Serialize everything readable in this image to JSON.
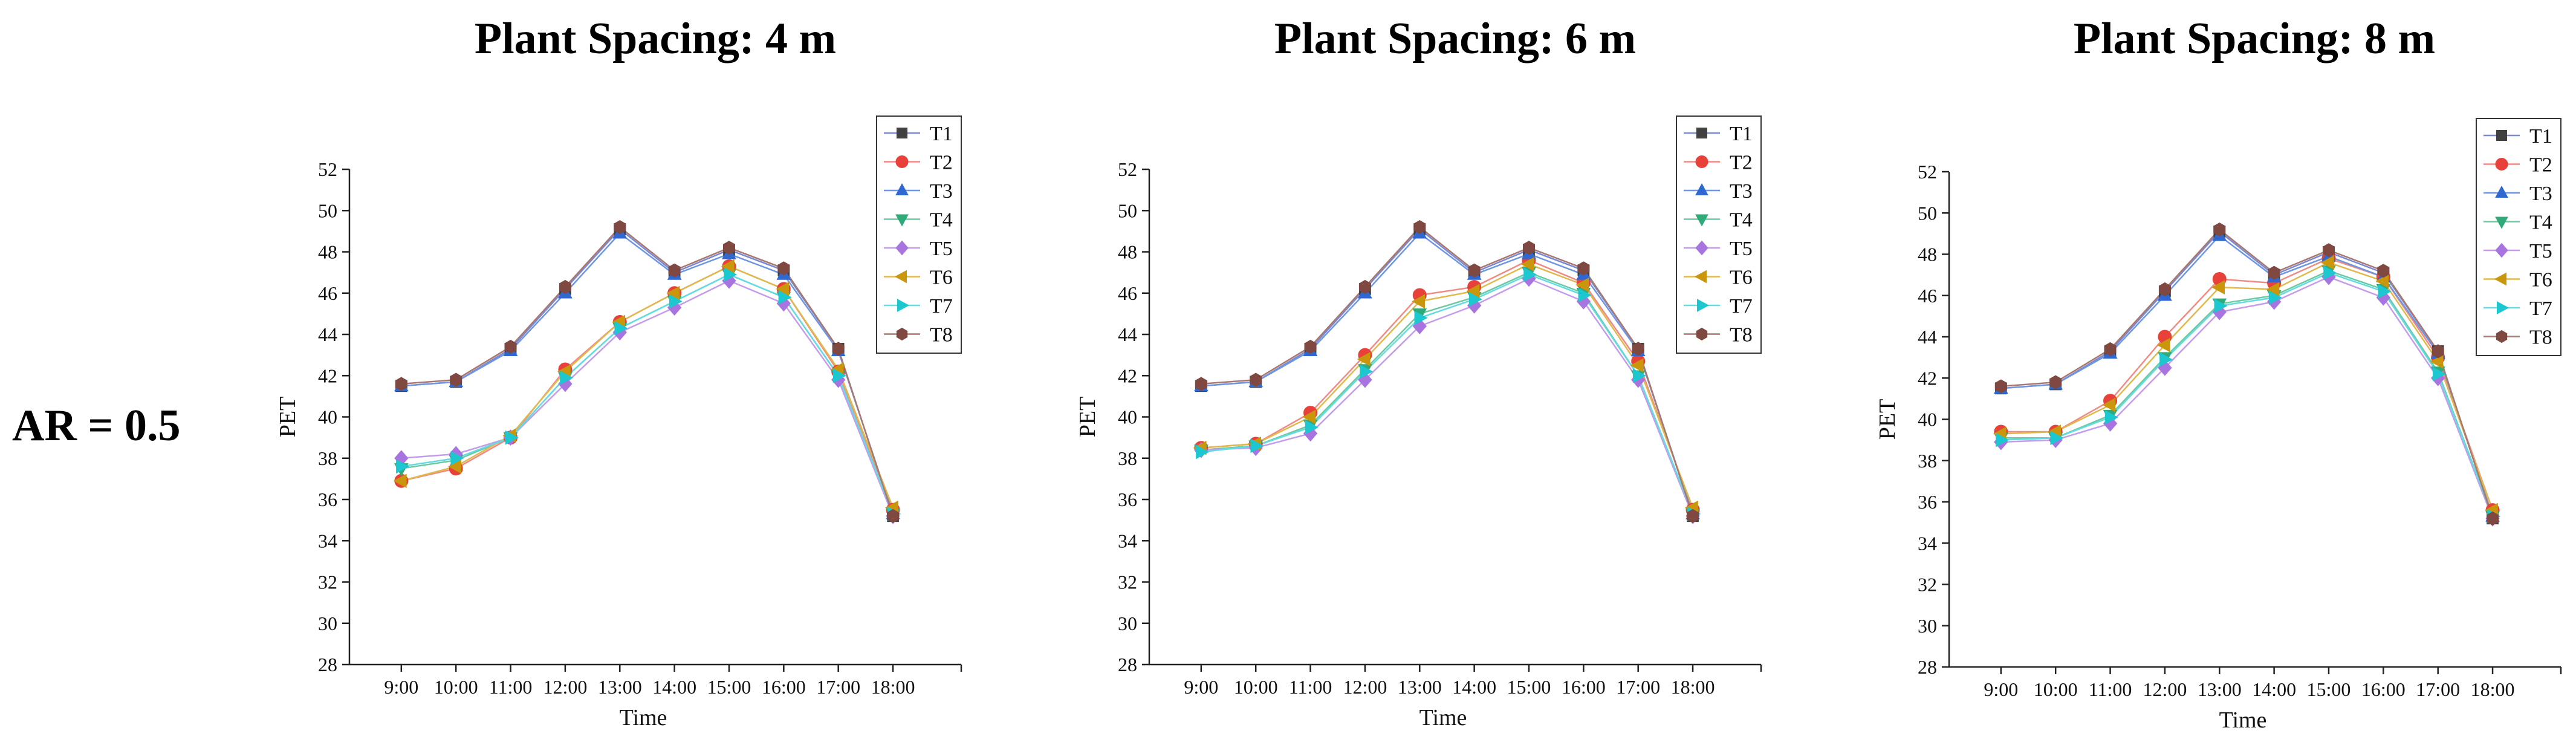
{
  "figure": {
    "row_label": "AR = 0.5"
  },
  "series_styles": [
    {
      "name": "T1",
      "color": "#404040",
      "line": "#7a8ad2",
      "marker": "square"
    },
    {
      "name": "T2",
      "color": "#e8413a",
      "line": "#f08a85",
      "marker": "circle"
    },
    {
      "name": "T3",
      "color": "#2f68d1",
      "line": "#6f96e2",
      "marker": "triangle-up"
    },
    {
      "name": "T4",
      "color": "#2faa78",
      "line": "#6ccaa2",
      "marker": "triangle-down"
    },
    {
      "name": "T5",
      "color": "#a874e0",
      "line": "#c39ceb",
      "marker": "diamond"
    },
    {
      "name": "T6",
      "color": "#c9960c",
      "line": "#e0b94d",
      "marker": "triangle-left"
    },
    {
      "name": "T7",
      "color": "#1cc7cf",
      "line": "#64dbe0",
      "marker": "triangle-right"
    },
    {
      "name": "T8",
      "color": "#7f4840",
      "line": "#a97870",
      "marker": "hexagon"
    }
  ],
  "chart_data": [
    {
      "type": "line",
      "title": "Plant Spacing: 4 m",
      "xlabel": "Time",
      "ylabel": "PET",
      "ylim": [
        28,
        52
      ],
      "yticks": [
        28,
        30,
        32,
        34,
        36,
        38,
        40,
        42,
        44,
        46,
        48,
        50,
        52
      ],
      "categories": [
        "9:00",
        "10:00",
        "11:00",
        "12:00",
        "13:00",
        "14:00",
        "15:00",
        "16:00",
        "17:00",
        "18:00"
      ],
      "legend_position": "top-right",
      "series": [
        {
          "name": "T1",
          "values": [
            41.5,
            41.7,
            43.3,
            46.2,
            49.1,
            47.0,
            48.1,
            47.1,
            43.3,
            35.2
          ]
        },
        {
          "name": "T2",
          "values": [
            36.9,
            37.5,
            39.0,
            42.3,
            44.6,
            46.0,
            47.3,
            46.2,
            42.2,
            35.5
          ]
        },
        {
          "name": "T3",
          "values": [
            41.5,
            41.7,
            43.2,
            46.0,
            48.9,
            46.9,
            47.9,
            46.9,
            43.2,
            35.3
          ]
        },
        {
          "name": "T4",
          "values": [
            37.5,
            37.9,
            39.0,
            41.9,
            44.3,
            45.6,
            46.9,
            45.8,
            42.0,
            35.3
          ]
        },
        {
          "name": "T5",
          "values": [
            38.0,
            38.2,
            39.0,
            41.6,
            44.1,
            45.3,
            46.6,
            45.5,
            41.8,
            35.2
          ]
        },
        {
          "name": "T6",
          "values": [
            36.9,
            37.6,
            39.1,
            42.2,
            44.6,
            46.0,
            47.3,
            46.2,
            42.3,
            35.6
          ]
        },
        {
          "name": "T7",
          "values": [
            37.6,
            38.0,
            39.0,
            41.9,
            44.3,
            45.6,
            46.9,
            45.8,
            42.0,
            35.3
          ]
        },
        {
          "name": "T8",
          "values": [
            41.6,
            41.8,
            43.4,
            46.3,
            49.2,
            47.1,
            48.2,
            47.2,
            43.3,
            35.2
          ]
        }
      ]
    },
    {
      "type": "line",
      "title": "Plant Spacing: 6 m",
      "xlabel": "Time",
      "ylabel": "PET",
      "ylim": [
        28,
        52
      ],
      "yticks": [
        28,
        30,
        32,
        34,
        36,
        38,
        40,
        42,
        44,
        46,
        48,
        50,
        52
      ],
      "categories": [
        "9:00",
        "10:00",
        "11:00",
        "12:00",
        "13:00",
        "14:00",
        "15:00",
        "16:00",
        "17:00",
        "18:00"
      ],
      "legend_position": "top-right",
      "series": [
        {
          "name": "T1",
          "values": [
            41.5,
            41.7,
            43.3,
            46.2,
            49.1,
            47.0,
            48.1,
            47.1,
            43.3,
            35.2
          ]
        },
        {
          "name": "T2",
          "values": [
            38.5,
            38.7,
            40.2,
            43.0,
            45.9,
            46.3,
            47.6,
            46.5,
            42.7,
            35.5
          ]
        },
        {
          "name": "T3",
          "values": [
            41.5,
            41.7,
            43.2,
            46.0,
            48.9,
            46.9,
            47.9,
            46.9,
            43.2,
            35.3
          ]
        },
        {
          "name": "T4",
          "values": [
            38.4,
            38.6,
            39.6,
            42.3,
            45.0,
            45.8,
            47.0,
            46.0,
            42.0,
            35.3
          ]
        },
        {
          "name": "T5",
          "values": [
            38.4,
            38.5,
            39.2,
            41.8,
            44.4,
            45.4,
            46.7,
            45.6,
            41.8,
            35.2
          ]
        },
        {
          "name": "T6",
          "values": [
            38.5,
            38.7,
            40.0,
            42.8,
            45.6,
            46.1,
            47.4,
            46.4,
            42.5,
            35.6
          ]
        },
        {
          "name": "T7",
          "values": [
            38.3,
            38.6,
            39.5,
            42.2,
            44.8,
            45.7,
            46.9,
            45.9,
            42.0,
            35.3
          ]
        },
        {
          "name": "T8",
          "values": [
            41.6,
            41.8,
            43.4,
            46.3,
            49.2,
            47.1,
            48.2,
            47.2,
            43.3,
            35.2
          ]
        }
      ]
    },
    {
      "type": "line",
      "title": "Plant Spacing: 8 m",
      "xlabel": "Time",
      "ylabel": "PET",
      "ylim": [
        28,
        52
      ],
      "yticks": [
        28,
        30,
        32,
        34,
        36,
        38,
        40,
        42,
        44,
        46,
        48,
        50,
        52
      ],
      "categories": [
        "9:00",
        "10:00",
        "11:00",
        "12:00",
        "13:00",
        "14:00",
        "15:00",
        "16:00",
        "17:00",
        "18:00"
      ],
      "legend_position": "top-right",
      "series": [
        {
          "name": "T1",
          "values": [
            41.5,
            41.7,
            43.3,
            46.2,
            49.1,
            47.0,
            48.1,
            47.1,
            43.3,
            35.2
          ]
        },
        {
          "name": "T2",
          "values": [
            39.4,
            39.4,
            40.9,
            44.0,
            46.8,
            46.6,
            47.8,
            46.9,
            43.0,
            35.6
          ]
        },
        {
          "name": "T3",
          "values": [
            41.5,
            41.7,
            43.2,
            46.0,
            48.9,
            46.9,
            47.9,
            46.9,
            43.2,
            35.3
          ]
        },
        {
          "name": "T4",
          "values": [
            39.1,
            39.1,
            40.2,
            43.0,
            45.6,
            46.0,
            47.2,
            46.3,
            42.3,
            35.3
          ]
        },
        {
          "name": "T5",
          "values": [
            38.9,
            39.0,
            39.8,
            42.5,
            45.2,
            45.7,
            46.9,
            45.9,
            42.0,
            35.2
          ]
        },
        {
          "name": "T6",
          "values": [
            39.3,
            39.4,
            40.7,
            43.6,
            46.4,
            46.3,
            47.6,
            46.7,
            42.8,
            35.6
          ]
        },
        {
          "name": "T7",
          "values": [
            39.0,
            39.1,
            40.1,
            42.9,
            45.5,
            45.9,
            47.1,
            46.2,
            42.2,
            35.3
          ]
        },
        {
          "name": "T8",
          "values": [
            41.6,
            41.8,
            43.4,
            46.3,
            49.2,
            47.1,
            48.2,
            47.2,
            43.3,
            35.2
          ]
        }
      ]
    }
  ]
}
